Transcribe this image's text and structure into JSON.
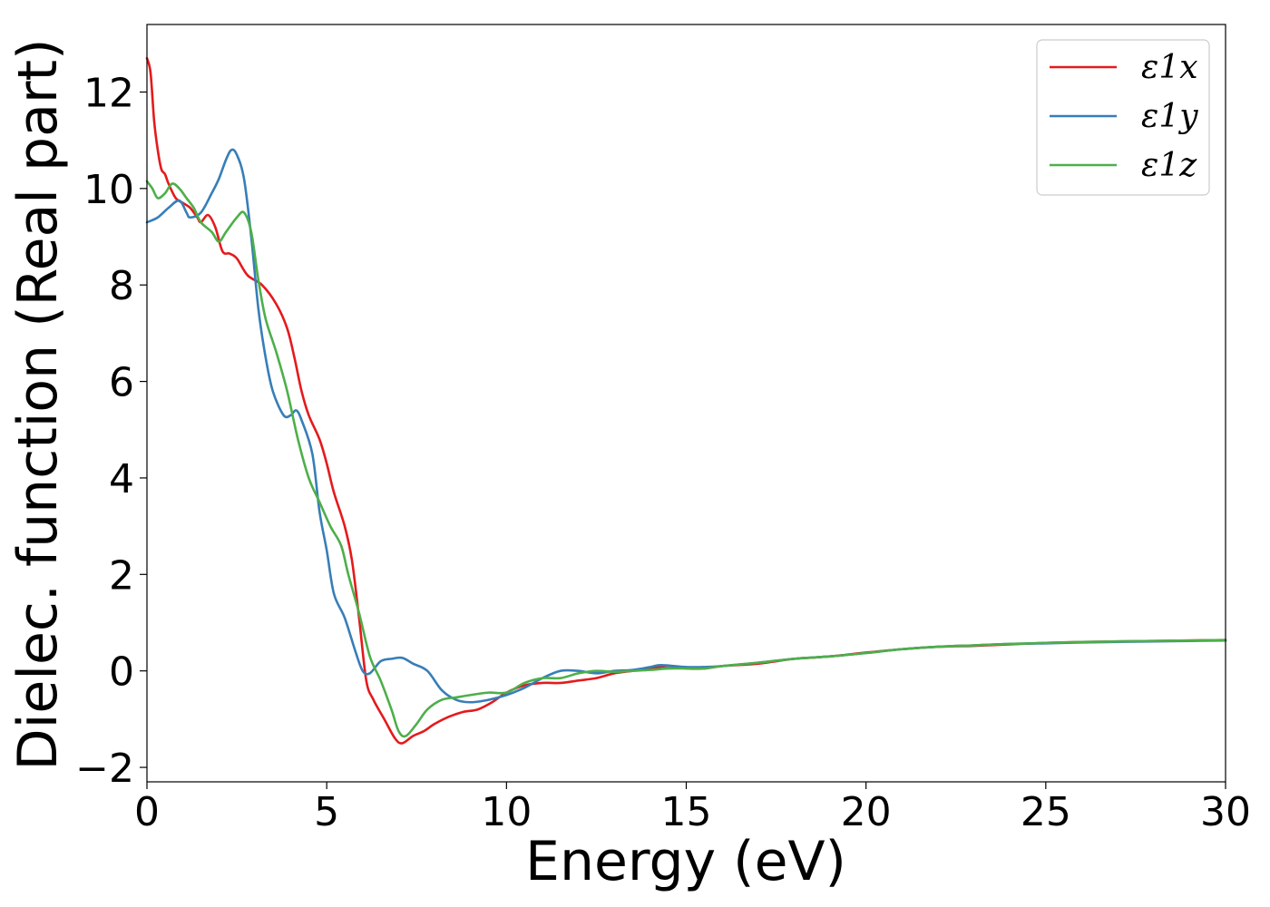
{
  "chart_data": {
    "type": "line",
    "xlabel": "Energy (eV)",
    "ylabel": "Dielec. function (Real part)",
    "xlim": [
      0,
      30
    ],
    "ylim": [
      -2.3,
      13.4
    ],
    "xticks": [
      0,
      5,
      10,
      15,
      20,
      25,
      30
    ],
    "xtick_labels": [
      "0",
      "5",
      "10",
      "15",
      "20",
      "25",
      "30"
    ],
    "yticks": [
      -2,
      0,
      2,
      4,
      6,
      8,
      10,
      12
    ],
    "ytick_labels": [
      "−2",
      "0",
      "2",
      "4",
      "6",
      "8",
      "10",
      "12"
    ],
    "grid": false,
    "legend_position": "top-right",
    "series": [
      {
        "name": "ε1x",
        "color": "#e41a1c",
        "points": [
          [
            0.0,
            12.7
          ],
          [
            0.1,
            12.4
          ],
          [
            0.2,
            11.4
          ],
          [
            0.3,
            10.8
          ],
          [
            0.4,
            10.4
          ],
          [
            0.5,
            10.3
          ],
          [
            0.6,
            10.1
          ],
          [
            0.8,
            9.8
          ],
          [
            1.0,
            9.7
          ],
          [
            1.2,
            9.6
          ],
          [
            1.4,
            9.4
          ],
          [
            1.5,
            9.3
          ],
          [
            1.7,
            9.45
          ],
          [
            1.9,
            9.2
          ],
          [
            2.1,
            8.7
          ],
          [
            2.3,
            8.65
          ],
          [
            2.5,
            8.55
          ],
          [
            2.8,
            8.2
          ],
          [
            3.2,
            8.0
          ],
          [
            3.6,
            7.6
          ],
          [
            3.9,
            7.1
          ],
          [
            4.1,
            6.5
          ],
          [
            4.3,
            5.8
          ],
          [
            4.5,
            5.3
          ],
          [
            4.8,
            4.8
          ],
          [
            5.0,
            4.3
          ],
          [
            5.2,
            3.7
          ],
          [
            5.5,
            3.0
          ],
          [
            5.7,
            2.3
          ],
          [
            5.9,
            1.1
          ],
          [
            6.1,
            -0.2
          ],
          [
            6.3,
            -0.6
          ],
          [
            6.6,
            -1.0
          ],
          [
            6.9,
            -1.4
          ],
          [
            7.1,
            -1.5
          ],
          [
            7.4,
            -1.35
          ],
          [
            7.7,
            -1.25
          ],
          [
            8.0,
            -1.1
          ],
          [
            8.4,
            -0.95
          ],
          [
            8.8,
            -0.85
          ],
          [
            9.2,
            -0.8
          ],
          [
            9.6,
            -0.65
          ],
          [
            10.0,
            -0.45
          ],
          [
            10.5,
            -0.3
          ],
          [
            11.0,
            -0.25
          ],
          [
            11.5,
            -0.25
          ],
          [
            12.0,
            -0.2
          ],
          [
            12.5,
            -0.15
          ],
          [
            13.0,
            -0.05
          ],
          [
            13.5,
            0.0
          ],
          [
            14.0,
            0.05
          ],
          [
            14.5,
            0.1
          ],
          [
            15.0,
            0.05
          ],
          [
            15.5,
            0.05
          ],
          [
            16.0,
            0.1
          ],
          [
            17.0,
            0.15
          ],
          [
            18.0,
            0.25
          ],
          [
            19.0,
            0.3
          ],
          [
            20.0,
            0.38
          ],
          [
            21.0,
            0.45
          ],
          [
            22.0,
            0.5
          ],
          [
            23.0,
            0.52
          ],
          [
            24.0,
            0.55
          ],
          [
            25.0,
            0.58
          ],
          [
            26.0,
            0.6
          ],
          [
            27.0,
            0.61
          ],
          [
            28.0,
            0.62
          ],
          [
            29.0,
            0.63
          ],
          [
            30.0,
            0.64
          ]
        ]
      },
      {
        "name": "ε1y",
        "color": "#377eb8",
        "points": [
          [
            0.0,
            9.3
          ],
          [
            0.3,
            9.4
          ],
          [
            0.6,
            9.6
          ],
          [
            0.9,
            9.75
          ],
          [
            1.1,
            9.5
          ],
          [
            1.2,
            9.4
          ],
          [
            1.5,
            9.5
          ],
          [
            1.8,
            9.9
          ],
          [
            2.0,
            10.2
          ],
          [
            2.2,
            10.6
          ],
          [
            2.35,
            10.8
          ],
          [
            2.5,
            10.7
          ],
          [
            2.7,
            10.2
          ],
          [
            2.9,
            9.0
          ],
          [
            3.1,
            7.5
          ],
          [
            3.3,
            6.5
          ],
          [
            3.5,
            5.8
          ],
          [
            3.8,
            5.3
          ],
          [
            4.0,
            5.3
          ],
          [
            4.15,
            5.4
          ],
          [
            4.3,
            5.2
          ],
          [
            4.6,
            4.5
          ],
          [
            4.8,
            3.3
          ],
          [
            5.0,
            2.5
          ],
          [
            5.2,
            1.6
          ],
          [
            5.5,
            1.1
          ],
          [
            5.8,
            0.4
          ],
          [
            6.0,
            0.0
          ],
          [
            6.2,
            -0.05
          ],
          [
            6.5,
            0.2
          ],
          [
            6.8,
            0.25
          ],
          [
            7.1,
            0.27
          ],
          [
            7.4,
            0.15
          ],
          [
            7.8,
            0.0
          ],
          [
            8.2,
            -0.4
          ],
          [
            8.6,
            -0.6
          ],
          [
            9.0,
            -0.65
          ],
          [
            9.5,
            -0.6
          ],
          [
            10.0,
            -0.5
          ],
          [
            10.5,
            -0.35
          ],
          [
            11.0,
            -0.15
          ],
          [
            11.5,
            0.0
          ],
          [
            12.0,
            0.0
          ],
          [
            12.5,
            -0.05
          ],
          [
            13.0,
            0.0
          ],
          [
            13.5,
            0.02
          ],
          [
            14.0,
            0.08
          ],
          [
            14.3,
            0.12
          ],
          [
            15.0,
            0.08
          ],
          [
            15.5,
            0.08
          ],
          [
            16.0,
            0.1
          ],
          [
            17.0,
            0.17
          ],
          [
            18.0,
            0.25
          ],
          [
            19.0,
            0.3
          ],
          [
            20.0,
            0.37
          ],
          [
            21.0,
            0.45
          ],
          [
            22.0,
            0.5
          ],
          [
            23.0,
            0.53
          ],
          [
            24.0,
            0.56
          ],
          [
            25.0,
            0.57
          ],
          [
            26.0,
            0.59
          ],
          [
            27.0,
            0.6
          ],
          [
            28.0,
            0.61
          ],
          [
            29.0,
            0.62
          ],
          [
            30.0,
            0.63
          ]
        ]
      },
      {
        "name": "ε1z",
        "color": "#4daf4a",
        "points": [
          [
            0.0,
            10.15
          ],
          [
            0.15,
            10.0
          ],
          [
            0.3,
            9.8
          ],
          [
            0.5,
            9.9
          ],
          [
            0.7,
            10.1
          ],
          [
            0.9,
            10.0
          ],
          [
            1.1,
            9.8
          ],
          [
            1.3,
            9.6
          ],
          [
            1.5,
            9.3
          ],
          [
            1.8,
            9.1
          ],
          [
            2.0,
            8.9
          ],
          [
            2.2,
            9.1
          ],
          [
            2.5,
            9.4
          ],
          [
            2.7,
            9.5
          ],
          [
            2.9,
            9.1
          ],
          [
            3.1,
            8.1
          ],
          [
            3.3,
            7.3
          ],
          [
            3.6,
            6.6
          ],
          [
            3.9,
            5.8
          ],
          [
            4.2,
            4.8
          ],
          [
            4.5,
            4.0
          ],
          [
            4.8,
            3.5
          ],
          [
            5.1,
            3.0
          ],
          [
            5.4,
            2.6
          ],
          [
            5.6,
            2.0
          ],
          [
            5.9,
            1.2
          ],
          [
            6.2,
            0.3
          ],
          [
            6.5,
            -0.2
          ],
          [
            6.8,
            -0.8
          ],
          [
            7.0,
            -1.25
          ],
          [
            7.2,
            -1.35
          ],
          [
            7.5,
            -1.1
          ],
          [
            7.8,
            -0.8
          ],
          [
            8.2,
            -0.6
          ],
          [
            8.6,
            -0.55
          ],
          [
            9.0,
            -0.5
          ],
          [
            9.5,
            -0.45
          ],
          [
            10.0,
            -0.45
          ],
          [
            10.5,
            -0.25
          ],
          [
            11.0,
            -0.15
          ],
          [
            11.5,
            -0.15
          ],
          [
            12.0,
            -0.05
          ],
          [
            12.5,
            0.0
          ],
          [
            13.0,
            -0.02
          ],
          [
            13.5,
            0.0
          ],
          [
            14.0,
            0.02
          ],
          [
            14.5,
            0.05
          ],
          [
            15.0,
            0.05
          ],
          [
            15.5,
            0.05
          ],
          [
            16.0,
            0.1
          ],
          [
            17.0,
            0.17
          ],
          [
            18.0,
            0.25
          ],
          [
            19.0,
            0.3
          ],
          [
            20.0,
            0.37
          ],
          [
            21.0,
            0.45
          ],
          [
            22.0,
            0.5
          ],
          [
            23.0,
            0.53
          ],
          [
            24.0,
            0.56
          ],
          [
            25.0,
            0.58
          ],
          [
            26.0,
            0.6
          ],
          [
            27.0,
            0.61
          ],
          [
            28.0,
            0.62
          ],
          [
            29.0,
            0.63
          ],
          [
            30.0,
            0.64
          ]
        ]
      }
    ]
  }
}
